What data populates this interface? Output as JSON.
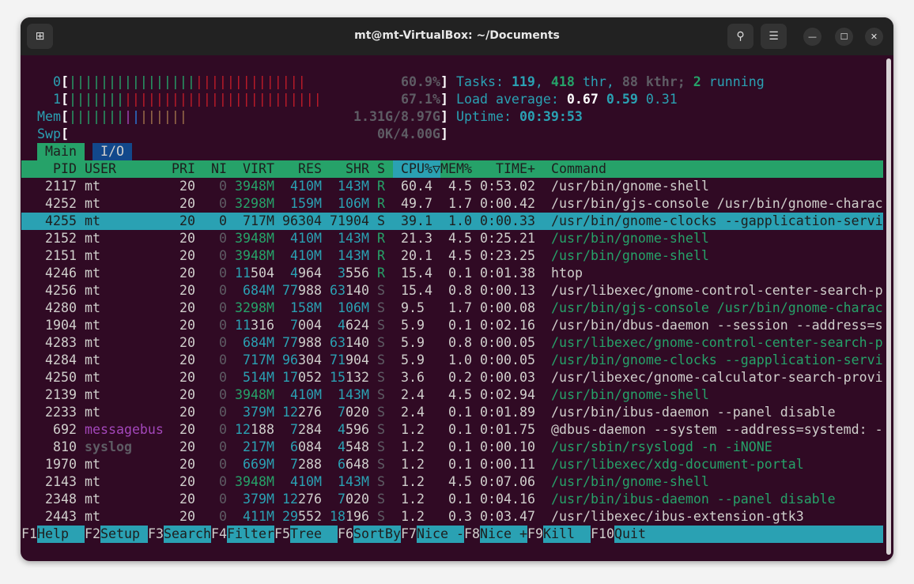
{
  "window": {
    "title": "mt@mt-VirtualBox: ~/Documents",
    "icons": [
      "new-tab-icon",
      "search-icon",
      "menu-icon",
      "minimize-icon",
      "maximize-icon",
      "close-icon"
    ]
  },
  "colors": {
    "background": "#300a24",
    "cyan": "#2aa1b3",
    "green": "#26a269",
    "red": "#c01c28",
    "grey": "#5e5c64",
    "magenta": "#a347ba",
    "blue": "#2a7bde",
    "brown": "#a2734c"
  },
  "meters": [
    {
      "label": "0",
      "value": "60.9%",
      "segments": [
        {
          "color": "green",
          "percent": 34.0
        },
        {
          "color": "red",
          "percent": 29.8
        }
      ]
    },
    {
      "label": "1",
      "value": "67.1%",
      "segments": [
        {
          "color": "green",
          "percent": 14.9
        },
        {
          "color": "red",
          "percent": 53.2
        }
      ]
    },
    {
      "label": "Mem",
      "value": "1.31G/8.97G",
      "segments": [
        {
          "color": "green",
          "percent": 14.9
        },
        {
          "color": "magenta",
          "percent": 2.1
        },
        {
          "color": "blue",
          "percent": 2.1
        },
        {
          "color": "brown",
          "percent": 12.8
        }
      ]
    },
    {
      "label": "Swp",
      "value": "0K/4.00G",
      "segments": []
    }
  ],
  "summary": {
    "tasks_label": "Tasks: ",
    "tasks": "119",
    "threads": "418",
    "thr_label": " thr, ",
    "kthreads": "88",
    "kthr_label": " kthr; ",
    "running": "2",
    "running_label": " running",
    "load_label": "Load average: ",
    "load1": "0.67",
    "load5": "0.59",
    "load15": "0.31",
    "uptime_label": "Uptime: ",
    "uptime": "00:39:53"
  },
  "tabs": [
    {
      "label": "Main",
      "active": true
    },
    {
      "label": "I/O",
      "active": false
    }
  ],
  "columns": [
    "PID",
    "USER",
    "PRI",
    "NI",
    "VIRT",
    "RES",
    "SHR",
    "S",
    "CPU%▽",
    "MEM%",
    "TIME+",
    "Command"
  ],
  "sort_column": "CPU%",
  "selected_index": 2,
  "processes": [
    {
      "pid": "2117",
      "user": "mt",
      "pri": "20",
      "ni": "0",
      "virt": "3948M",
      "res": "410M",
      "shr": "143M",
      "s": "R",
      "cpu": "60.4",
      "mem": "4.5",
      "time": "0:53.02",
      "command": "/usr/bin/gnome-shell",
      "thread": false
    },
    {
      "pid": "4252",
      "user": "mt",
      "pri": "20",
      "ni": "0",
      "virt": "3298M",
      "res": "159M",
      "shr": "106M",
      "s": "R",
      "cpu": "49.7",
      "mem": "1.7",
      "time": "0:00.42",
      "command": "/usr/bin/gjs-console /usr/bin/gnome-charac",
      "thread": false
    },
    {
      "pid": "4255",
      "user": "mt",
      "pri": "20",
      "ni": "0",
      "virt": "717M",
      "res": "96304",
      "shr": "71904",
      "s": "S",
      "cpu": "39.1",
      "mem": "1.0",
      "time": "0:00.33",
      "command": "/usr/bin/gnome-clocks --gapplication-servi",
      "thread": false
    },
    {
      "pid": "2152",
      "user": "mt",
      "pri": "20",
      "ni": "0",
      "virt": "3948M",
      "res": "410M",
      "shr": "143M",
      "s": "R",
      "cpu": "21.3",
      "mem": "4.5",
      "time": "0:25.21",
      "command": "/usr/bin/gnome-shell",
      "thread": true
    },
    {
      "pid": "2151",
      "user": "mt",
      "pri": "20",
      "ni": "0",
      "virt": "3948M",
      "res": "410M",
      "shr": "143M",
      "s": "R",
      "cpu": "20.1",
      "mem": "4.5",
      "time": "0:23.25",
      "command": "/usr/bin/gnome-shell",
      "thread": true
    },
    {
      "pid": "4246",
      "user": "mt",
      "pri": "20",
      "ni": "0",
      "virt": "11504",
      "res": "4964",
      "shr": "3556",
      "s": "R",
      "cpu": "15.4",
      "mem": "0.1",
      "time": "0:01.38",
      "command": "htop",
      "thread": false
    },
    {
      "pid": "4256",
      "user": "mt",
      "pri": "20",
      "ni": "0",
      "virt": "684M",
      "res": "77988",
      "shr": "63140",
      "s": "S",
      "cpu": "15.4",
      "mem": "0.8",
      "time": "0:00.13",
      "command": "/usr/libexec/gnome-control-center-search-p",
      "thread": false
    },
    {
      "pid": "4280",
      "user": "mt",
      "pri": "20",
      "ni": "0",
      "virt": "3298M",
      "res": "158M",
      "shr": "106M",
      "s": "S",
      "cpu": "9.5",
      "mem": "1.7",
      "time": "0:00.08",
      "command": "/usr/bin/gjs-console /usr/bin/gnome-charac",
      "thread": true
    },
    {
      "pid": "1904",
      "user": "mt",
      "pri": "20",
      "ni": "0",
      "virt": "11316",
      "res": "7004",
      "shr": "4624",
      "s": "S",
      "cpu": "5.9",
      "mem": "0.1",
      "time": "0:02.16",
      "command": "/usr/bin/dbus-daemon --session --address=s",
      "thread": false
    },
    {
      "pid": "4283",
      "user": "mt",
      "pri": "20",
      "ni": "0",
      "virt": "684M",
      "res": "77988",
      "shr": "63140",
      "s": "S",
      "cpu": "5.9",
      "mem": "0.8",
      "time": "0:00.05",
      "command": "/usr/libexec/gnome-control-center-search-p",
      "thread": true
    },
    {
      "pid": "4284",
      "user": "mt",
      "pri": "20",
      "ni": "0",
      "virt": "717M",
      "res": "96304",
      "shr": "71904",
      "s": "S",
      "cpu": "5.9",
      "mem": "1.0",
      "time": "0:00.05",
      "command": "/usr/bin/gnome-clocks --gapplication-servi",
      "thread": true
    },
    {
      "pid": "4250",
      "user": "mt",
      "pri": "20",
      "ni": "0",
      "virt": "514M",
      "res": "17052",
      "shr": "15132",
      "s": "S",
      "cpu": "3.6",
      "mem": "0.2",
      "time": "0:00.03",
      "command": "/usr/libexec/gnome-calculator-search-provi",
      "thread": false
    },
    {
      "pid": "2139",
      "user": "mt",
      "pri": "20",
      "ni": "0",
      "virt": "3948M",
      "res": "410M",
      "shr": "143M",
      "s": "S",
      "cpu": "2.4",
      "mem": "4.5",
      "time": "0:02.94",
      "command": "/usr/bin/gnome-shell",
      "thread": true
    },
    {
      "pid": "2233",
      "user": "mt",
      "pri": "20",
      "ni": "0",
      "virt": "379M",
      "res": "12276",
      "shr": "7020",
      "s": "S",
      "cpu": "2.4",
      "mem": "0.1",
      "time": "0:01.89",
      "command": "/usr/bin/ibus-daemon --panel disable",
      "thread": false
    },
    {
      "pid": "692",
      "user": "messagebus",
      "pri": "20",
      "ni": "0",
      "virt": "12188",
      "res": "7284",
      "shr": "4596",
      "s": "S",
      "cpu": "1.2",
      "mem": "0.1",
      "time": "0:01.75",
      "command": "@dbus-daemon --system --address=systemd: -",
      "thread": false
    },
    {
      "pid": "810",
      "user": "syslog",
      "pri": "20",
      "ni": "0",
      "virt": "217M",
      "res": "6084",
      "shr": "4548",
      "s": "S",
      "cpu": "1.2",
      "mem": "0.1",
      "time": "0:00.10",
      "command": "/usr/sbin/rsyslogd -n -iNONE",
      "thread": true
    },
    {
      "pid": "1970",
      "user": "mt",
      "pri": "20",
      "ni": "0",
      "virt": "669M",
      "res": "7288",
      "shr": "6648",
      "s": "S",
      "cpu": "1.2",
      "mem": "0.1",
      "time": "0:00.11",
      "command": "/usr/libexec/xdg-document-portal",
      "thread": true
    },
    {
      "pid": "2143",
      "user": "mt",
      "pri": "20",
      "ni": "0",
      "virt": "3948M",
      "res": "410M",
      "shr": "143M",
      "s": "S",
      "cpu": "1.2",
      "mem": "4.5",
      "time": "0:07.06",
      "command": "/usr/bin/gnome-shell",
      "thread": true
    },
    {
      "pid": "2348",
      "user": "mt",
      "pri": "20",
      "ni": "0",
      "virt": "379M",
      "res": "12276",
      "shr": "7020",
      "s": "S",
      "cpu": "1.2",
      "mem": "0.1",
      "time": "0:04.16",
      "command": "/usr/bin/ibus-daemon --panel disable",
      "thread": true
    },
    {
      "pid": "2443",
      "user": "mt",
      "pri": "20",
      "ni": "0",
      "virt": "411M",
      "res": "29552",
      "shr": "18196",
      "s": "S",
      "cpu": "1.2",
      "mem": "0.3",
      "time": "0:03.47",
      "command": "/usr/libexec/ibus-extension-gtk3",
      "thread": false
    }
  ],
  "function_keys": [
    {
      "key": "F1",
      "label": "Help"
    },
    {
      "key": "F2",
      "label": "Setup"
    },
    {
      "key": "F3",
      "label": "Search"
    },
    {
      "key": "F4",
      "label": "Filter"
    },
    {
      "key": "F5",
      "label": "Tree"
    },
    {
      "key": "F6",
      "label": "SortBy"
    },
    {
      "key": "F7",
      "label": "Nice -"
    },
    {
      "key": "F8",
      "label": "Nice +"
    },
    {
      "key": "F9",
      "label": "Kill"
    },
    {
      "key": "F10",
      "label": "Quit"
    }
  ]
}
